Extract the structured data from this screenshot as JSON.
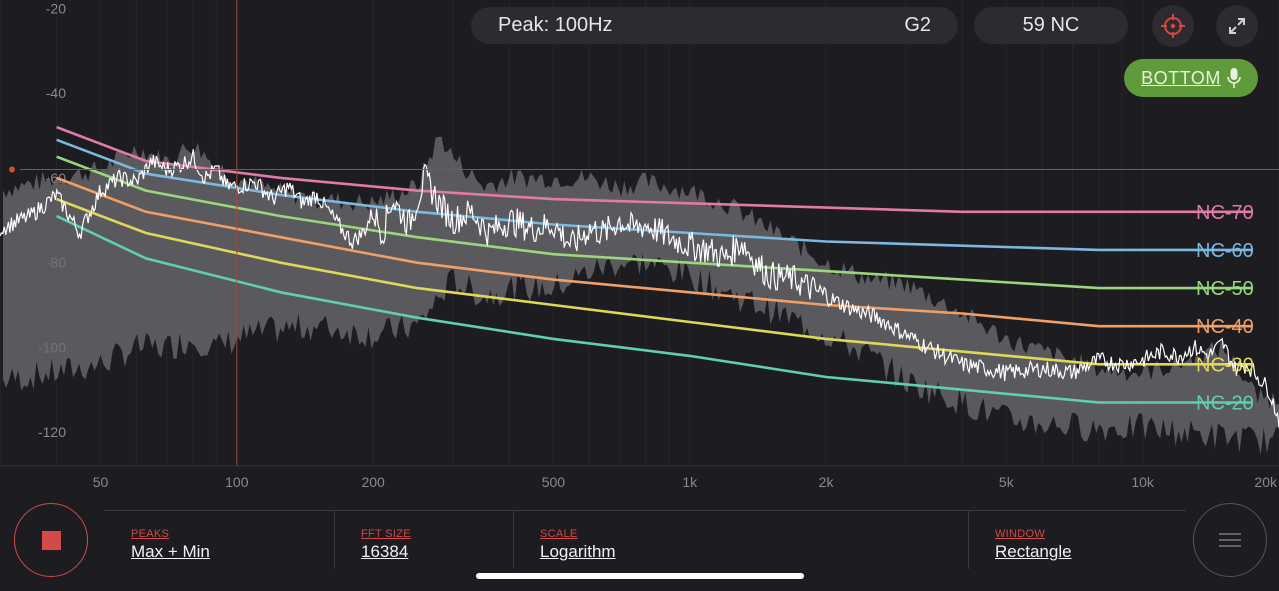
{
  "header": {
    "peak_label": "Peak: 100Hz",
    "note": "G2",
    "nc_rating": "59 NC",
    "target_icon": "crosshair-icon",
    "expand_icon": "expand-icon"
  },
  "mic_button": {
    "label": "BOTTOM",
    "icon": "microphone-icon",
    "color": "#5f9b3a"
  },
  "chart_data": {
    "type": "line",
    "x_scale": "log",
    "xlim": [
      30,
      20000
    ],
    "ylim": [
      -128,
      -18
    ],
    "y_ticks": [
      -20,
      -40,
      -60,
      -80,
      -100,
      -120
    ],
    "x_ticks": [
      {
        "value": 50,
        "label": "50"
      },
      {
        "value": 100,
        "label": "100"
      },
      {
        "value": 200,
        "label": "200"
      },
      {
        "value": 500,
        "label": "500"
      },
      {
        "value": 1000,
        "label": "1k"
      },
      {
        "value": 2000,
        "label": "2k"
      },
      {
        "value": 5000,
        "label": "5k"
      },
      {
        "value": 10000,
        "label": "10k"
      },
      {
        "value": 20000,
        "label": "20k"
      }
    ],
    "cursor": {
      "freq": 100,
      "level": -58
    },
    "nc_curves": [
      {
        "name": "NC-70",
        "color": "#e07aa8",
        "points": [
          [
            31.5,
            -50
          ],
          [
            63,
            -56
          ],
          [
            125,
            -60
          ],
          [
            250,
            -63
          ],
          [
            500,
            -65
          ],
          [
            1000,
            -66
          ],
          [
            2000,
            -67
          ],
          [
            4000,
            -68
          ],
          [
            8000,
            -68
          ],
          [
            16000,
            -68
          ]
        ]
      },
      {
        "name": "NC-60",
        "color": "#7ab8e0",
        "points": [
          [
            31.5,
            -53
          ],
          [
            63,
            -59
          ],
          [
            125,
            -64
          ],
          [
            250,
            -68
          ],
          [
            500,
            -71
          ],
          [
            1000,
            -73
          ],
          [
            2000,
            -75
          ],
          [
            4000,
            -76
          ],
          [
            8000,
            -77
          ],
          [
            16000,
            -77
          ]
        ]
      },
      {
        "name": "NC-50",
        "color": "#9bd67c",
        "points": [
          [
            31.5,
            -57
          ],
          [
            63,
            -63
          ],
          [
            125,
            -69
          ],
          [
            250,
            -74
          ],
          [
            500,
            -78
          ],
          [
            1000,
            -80
          ],
          [
            2000,
            -82
          ],
          [
            4000,
            -84
          ],
          [
            8000,
            -86
          ],
          [
            16000,
            -86
          ]
        ]
      },
      {
        "name": "NC-40",
        "color": "#f0a066",
        "points": [
          [
            31.5,
            -62
          ],
          [
            63,
            -68
          ],
          [
            125,
            -74
          ],
          [
            250,
            -80
          ],
          [
            500,
            -84
          ],
          [
            1000,
            -87
          ],
          [
            2000,
            -90
          ],
          [
            4000,
            -92
          ],
          [
            8000,
            -95
          ],
          [
            16000,
            -95
          ]
        ]
      },
      {
        "name": "NC-30",
        "color": "#e0d65a",
        "points": [
          [
            31.5,
            -67
          ],
          [
            63,
            -73
          ],
          [
            125,
            -80
          ],
          [
            250,
            -86
          ],
          [
            500,
            -90
          ],
          [
            1000,
            -94
          ],
          [
            2000,
            -98
          ],
          [
            4000,
            -101
          ],
          [
            8000,
            -104
          ],
          [
            16000,
            -104
          ]
        ]
      },
      {
        "name": "NC-20",
        "color": "#5fcfae",
        "points": [
          [
            31.5,
            -71
          ],
          [
            63,
            -79
          ],
          [
            125,
            -87
          ],
          [
            250,
            -93
          ],
          [
            500,
            -98
          ],
          [
            1000,
            -102
          ],
          [
            2000,
            -107
          ],
          [
            4000,
            -110
          ],
          [
            8000,
            -113
          ],
          [
            16000,
            -113
          ]
        ]
      }
    ],
    "spectrum_max": [
      [
        30,
        -63
      ],
      [
        40,
        -60
      ],
      [
        50,
        -58
      ],
      [
        60,
        -53
      ],
      [
        70,
        -56
      ],
      [
        80,
        -52
      ],
      [
        90,
        -57
      ],
      [
        100,
        -60
      ],
      [
        120,
        -63
      ],
      [
        150,
        -65
      ],
      [
        200,
        -66
      ],
      [
        250,
        -62
      ],
      [
        280,
        -50
      ],
      [
        300,
        -55
      ],
      [
        350,
        -62
      ],
      [
        400,
        -60
      ],
      [
        500,
        -60
      ],
      [
        600,
        -60
      ],
      [
        700,
        -62
      ],
      [
        800,
        -61
      ],
      [
        1000,
        -63
      ],
      [
        1200,
        -66
      ],
      [
        1500,
        -72
      ],
      [
        2000,
        -80
      ],
      [
        2500,
        -84
      ],
      [
        3000,
        -85
      ],
      [
        4000,
        -92
      ],
      [
        5000,
        -98
      ],
      [
        6000,
        -101
      ],
      [
        8000,
        -105
      ],
      [
        10000,
        -106
      ],
      [
        12000,
        -104
      ],
      [
        15000,
        -100
      ],
      [
        18000,
        -112
      ],
      [
        20000,
        -112
      ]
    ],
    "spectrum_min": [
      [
        30,
        -108
      ],
      [
        40,
        -106
      ],
      [
        50,
        -104
      ],
      [
        60,
        -100
      ],
      [
        70,
        -100
      ],
      [
        80,
        -98
      ],
      [
        90,
        -100
      ],
      [
        100,
        -98
      ],
      [
        120,
        -96
      ],
      [
        150,
        -95
      ],
      [
        200,
        -97
      ],
      [
        250,
        -95
      ],
      [
        300,
        -84
      ],
      [
        350,
        -88
      ],
      [
        400,
        -86
      ],
      [
        500,
        -86
      ],
      [
        600,
        -82
      ],
      [
        700,
        -80
      ],
      [
        800,
        -80
      ],
      [
        1000,
        -83
      ],
      [
        1200,
        -87
      ],
      [
        1500,
        -91
      ],
      [
        2000,
        -97
      ],
      [
        2500,
        -102
      ],
      [
        3000,
        -108
      ],
      [
        4000,
        -113
      ],
      [
        5000,
        -117
      ],
      [
        6000,
        -118
      ],
      [
        8000,
        -119
      ],
      [
        10000,
        -119
      ],
      [
        12000,
        -120
      ],
      [
        15000,
        -121
      ],
      [
        18000,
        -122
      ],
      [
        20000,
        -122
      ]
    ],
    "spectrum_avg": [
      [
        30,
        -72
      ],
      [
        35,
        -69
      ],
      [
        40,
        -64
      ],
      [
        45,
        -73
      ],
      [
        50,
        -63
      ],
      [
        55,
        -60
      ],
      [
        60,
        -61
      ],
      [
        65,
        -56
      ],
      [
        70,
        -58
      ],
      [
        75,
        -57
      ],
      [
        80,
        -55
      ],
      [
        85,
        -60
      ],
      [
        90,
        -58
      ],
      [
        95,
        -62
      ],
      [
        100,
        -62
      ],
      [
        110,
        -61
      ],
      [
        120,
        -65
      ],
      [
        130,
        -62
      ],
      [
        140,
        -66
      ],
      [
        150,
        -64
      ],
      [
        170,
        -72
      ],
      [
        180,
        -75
      ],
      [
        190,
        -73
      ],
      [
        200,
        -68
      ],
      [
        210,
        -73
      ],
      [
        220,
        -65
      ],
      [
        240,
        -71
      ],
      [
        260,
        -60
      ],
      [
        280,
        -66
      ],
      [
        300,
        -70
      ],
      [
        330,
        -68
      ],
      [
        360,
        -73
      ],
      [
        400,
        -70
      ],
      [
        450,
        -72
      ],
      [
        500,
        -71
      ],
      [
        550,
        -76
      ],
      [
        600,
        -72
      ],
      [
        650,
        -73
      ],
      [
        700,
        -70
      ],
      [
        750,
        -72
      ],
      [
        800,
        -71
      ],
      [
        900,
        -74
      ],
      [
        1000,
        -76
      ],
      [
        1100,
        -77
      ],
      [
        1200,
        -79
      ],
      [
        1300,
        -75
      ],
      [
        1400,
        -80
      ],
      [
        1500,
        -83
      ],
      [
        1700,
        -84
      ],
      [
        2000,
        -88
      ],
      [
        2300,
        -91
      ],
      [
        2600,
        -93
      ],
      [
        3000,
        -97
      ],
      [
        3500,
        -101
      ],
      [
        4000,
        -104
      ],
      [
        4500,
        -105
      ],
      [
        5000,
        -106
      ],
      [
        6000,
        -105
      ],
      [
        7000,
        -106
      ],
      [
        8000,
        -103
      ],
      [
        9000,
        -104
      ],
      [
        10000,
        -103
      ],
      [
        11000,
        -101
      ],
      [
        12000,
        -102
      ],
      [
        13000,
        -100
      ],
      [
        14000,
        -102
      ],
      [
        15000,
        -99
      ],
      [
        16000,
        -105
      ],
      [
        17000,
        -104
      ],
      [
        18000,
        -107
      ],
      [
        19000,
        -110
      ],
      [
        20000,
        -117
      ]
    ]
  },
  "controls": [
    {
      "label": "PEAKS",
      "value": "Max + Min"
    },
    {
      "label": "FFT SIZE",
      "value": "16384"
    },
    {
      "label": "SCALE",
      "value": "Logarithm"
    },
    {
      "label": "WINDOW",
      "value": "Rectangle"
    }
  ],
  "record_button": {
    "icon": "stop-icon",
    "color": "#d24a4a"
  },
  "menu_button": {
    "icon": "menu-icon"
  }
}
